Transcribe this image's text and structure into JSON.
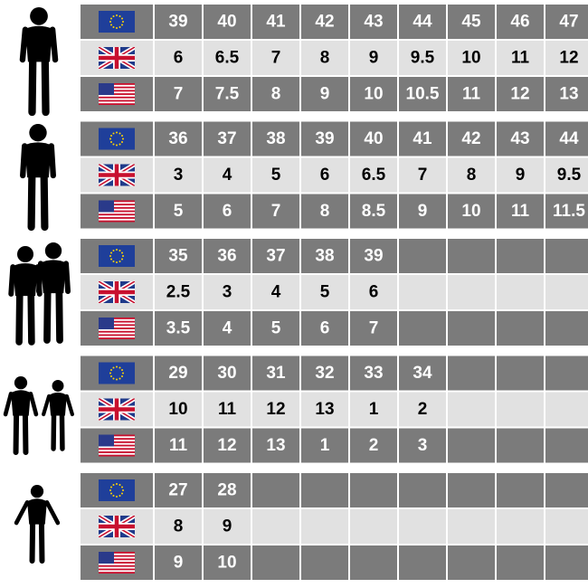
{
  "groups": [
    {
      "eu": [
        39,
        40,
        41,
        42,
        43,
        44,
        45,
        46,
        47
      ],
      "uk": [
        6,
        6.5,
        7,
        8,
        9,
        9.5,
        10,
        11,
        12
      ],
      "us": [
        7,
        7.5,
        8,
        9,
        10,
        10.5,
        11,
        12,
        13
      ]
    },
    {
      "eu": [
        36,
        37,
        38,
        39,
        40,
        41,
        42,
        43,
        44
      ],
      "uk": [
        3,
        4,
        5,
        6,
        6.5,
        7,
        8,
        9,
        9.5
      ],
      "us": [
        5,
        6,
        7,
        8,
        8.5,
        9,
        10,
        11,
        11.5
      ]
    },
    {
      "eu": [
        35,
        36,
        37,
        38,
        39
      ],
      "uk": [
        2.5,
        3,
        4,
        5,
        6
      ],
      "us": [
        3.5,
        4,
        5,
        6,
        7
      ]
    },
    {
      "eu": [
        29,
        30,
        31,
        32,
        33,
        34
      ],
      "uk": [
        10,
        11,
        12,
        13,
        1,
        2
      ],
      "us": [
        11,
        12,
        13,
        1,
        2,
        3
      ]
    },
    {
      "eu": [
        27,
        28
      ],
      "uk": [
        8,
        9
      ],
      "us": [
        9,
        10
      ]
    }
  ]
}
